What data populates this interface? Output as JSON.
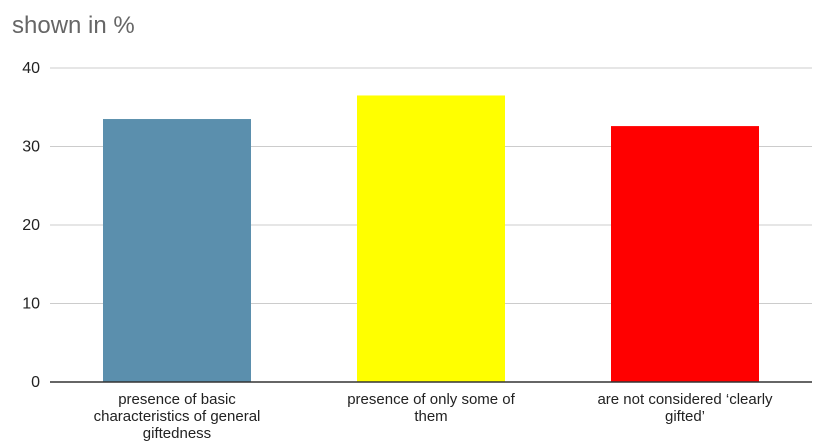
{
  "chart_data": {
    "type": "bar",
    "title": "shown in %",
    "categories": [
      [
        "presence of basic",
        "characteristics of general",
        "giftedness"
      ],
      [
        "presence of only some of",
        "them"
      ],
      [
        "are not considered ‘clearly",
        "gifted’"
      ]
    ],
    "values": [
      33.5,
      36.5,
      32.6
    ],
    "colors": [
      "#5b8fad",
      "#ffff00",
      "#ff0000"
    ],
    "ylim": [
      0,
      40
    ],
    "yticks": [
      0,
      10,
      20,
      30,
      40
    ],
    "grid": true,
    "legend": "none"
  }
}
